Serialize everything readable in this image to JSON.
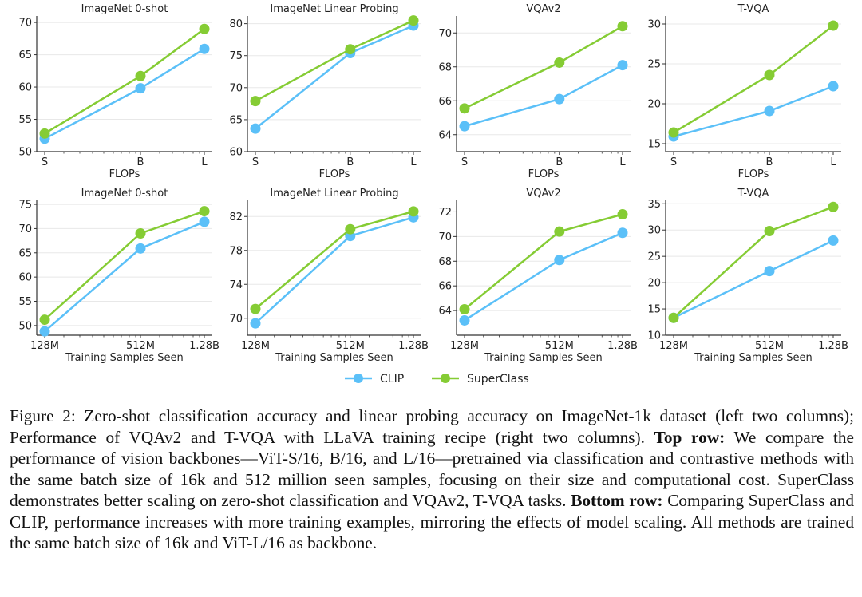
{
  "chart_data": [
    {
      "type": "line",
      "title": "ImageNet 0-shot",
      "xlabel": "FLOPs",
      "ylabel": "",
      "categories": [
        "S",
        "B",
        "L"
      ],
      "x_positions": [
        0,
        0.6,
        1
      ],
      "ylim": [
        50,
        71
      ],
      "yticks": [
        50,
        55,
        60,
        65,
        70
      ],
      "grid": true,
      "series": [
        {
          "name": "CLIP",
          "values": [
            52.0,
            59.8,
            65.9
          ]
        },
        {
          "name": "SuperClass",
          "values": [
            52.8,
            61.7,
            69.0
          ]
        }
      ]
    },
    {
      "type": "line",
      "title": "ImageNet Linear Probing",
      "xlabel": "FLOPs",
      "ylabel": "",
      "categories": [
        "S",
        "B",
        "L"
      ],
      "x_positions": [
        0,
        0.6,
        1
      ],
      "ylim": [
        60,
        81.2
      ],
      "yticks": [
        60,
        65,
        70,
        75,
        80
      ],
      "grid": true,
      "series": [
        {
          "name": "CLIP",
          "values": [
            63.6,
            75.4,
            79.7
          ]
        },
        {
          "name": "SuperClass",
          "values": [
            67.9,
            76.0,
            80.5
          ]
        }
      ]
    },
    {
      "type": "line",
      "title": "VQAv2",
      "xlabel": "FLOPs",
      "ylabel": "",
      "categories": [
        "S",
        "B",
        "L"
      ],
      "x_positions": [
        0,
        0.6,
        1
      ],
      "ylim": [
        63,
        71
      ],
      "yticks": [
        64,
        66,
        68,
        70
      ],
      "grid": true,
      "series": [
        {
          "name": "CLIP",
          "values": [
            64.5,
            66.1,
            68.1
          ]
        },
        {
          "name": "SuperClass",
          "values": [
            65.55,
            68.25,
            70.4
          ]
        }
      ]
    },
    {
      "type": "line",
      "title": "T-VQA",
      "xlabel": "FLOPs",
      "ylabel": "",
      "categories": [
        "S",
        "B",
        "L"
      ],
      "x_positions": [
        0,
        0.6,
        1
      ],
      "ylim": [
        14,
        31
      ],
      "yticks": [
        15,
        20,
        25,
        30
      ],
      "grid": true,
      "series": [
        {
          "name": "CLIP",
          "values": [
            15.9,
            19.1,
            22.2
          ]
        },
        {
          "name": "SuperClass",
          "values": [
            16.4,
            23.6,
            29.8
          ]
        }
      ]
    },
    {
      "type": "line",
      "title": "ImageNet 0-shot",
      "xlabel": "Training Samples Seen",
      "ylabel": "",
      "categories": [
        "128M",
        "512M",
        "1.28B"
      ],
      "x_positions": [
        0,
        0.6,
        1
      ],
      "ylim": [
        48,
        76
      ],
      "yticks": [
        50,
        55,
        60,
        65,
        70,
        75
      ],
      "grid": true,
      "series": [
        {
          "name": "CLIP",
          "values": [
            48.8,
            65.9,
            71.4
          ]
        },
        {
          "name": "SuperClass",
          "values": [
            51.2,
            69.0,
            73.6
          ]
        }
      ]
    },
    {
      "type": "line",
      "title": "ImageNet Linear Probing",
      "xlabel": "Training Samples Seen",
      "ylabel": "",
      "categories": [
        "128M",
        "512M",
        "1.28B"
      ],
      "x_positions": [
        0,
        0.6,
        1
      ],
      "ylim": [
        68,
        84
      ],
      "yticks": [
        70,
        74,
        78,
        82
      ],
      "grid": true,
      "series": [
        {
          "name": "CLIP",
          "values": [
            69.4,
            79.7,
            81.9
          ]
        },
        {
          "name": "SuperClass",
          "values": [
            71.1,
            80.5,
            82.6
          ]
        }
      ]
    },
    {
      "type": "line",
      "title": "VQAv2",
      "xlabel": "Training Samples Seen",
      "ylabel": "",
      "categories": [
        "128M",
        "512M",
        "1.28B"
      ],
      "x_positions": [
        0,
        0.6,
        1
      ],
      "ylim": [
        62,
        73
      ],
      "yticks": [
        64,
        66,
        68,
        70,
        72
      ],
      "grid": true,
      "series": [
        {
          "name": "CLIP",
          "values": [
            63.2,
            68.1,
            70.3
          ]
        },
        {
          "name": "SuperClass",
          "values": [
            64.1,
            70.4,
            71.8
          ]
        }
      ]
    },
    {
      "type": "line",
      "title": "T-VQA",
      "xlabel": "Training Samples Seen",
      "ylabel": "",
      "categories": [
        "128M",
        "512M",
        "1.28B"
      ],
      "x_positions": [
        0,
        0.6,
        1
      ],
      "ylim": [
        10,
        35.8
      ],
      "yticks": [
        10,
        15,
        20,
        25,
        30,
        35
      ],
      "grid": true,
      "series": [
        {
          "name": "CLIP",
          "values": [
            13.3,
            22.2,
            28.0
          ]
        },
        {
          "name": "SuperClass",
          "values": [
            13.3,
            29.8,
            34.4
          ]
        }
      ]
    }
  ],
  "legend": {
    "position": "bottom-center",
    "entries": [
      {
        "name": "CLIP",
        "color": "#5bc0f8"
      },
      {
        "name": "SuperClass",
        "color": "#85cc34"
      }
    ]
  },
  "colors": {
    "CLIP": "#5bc0f8",
    "SuperClass": "#85cc34",
    "grid": "#e8e8e8",
    "axis": "#333333"
  },
  "caption": {
    "p1": "Figure 2: Zero-shot classification accuracy and linear probing accuracy on ImageNet-1k dataset (left two columns); Performance of VQAv2 and T-VQA with LLaVA training recipe (right two columns). ",
    "bold1": "Top row:",
    "p2": " We compare the performance of vision backbones—ViT-S/16, B/16, and L/16—pretrained via classification and contrastive methods with the same batch size of 16k and 512 million seen samples, focusing on their size and computational cost. SuperClass demonstrates better scaling on zero-shot classification and VQAv2, T-VQA tasks. ",
    "bold2": "Bottom row:",
    "p3": " Comparing SuperClass and CLIP, performance increases with more training examples, mirroring the effects of model scaling. All methods are trained the same batch size of 16k and ViT-L/16 as backbone."
  }
}
